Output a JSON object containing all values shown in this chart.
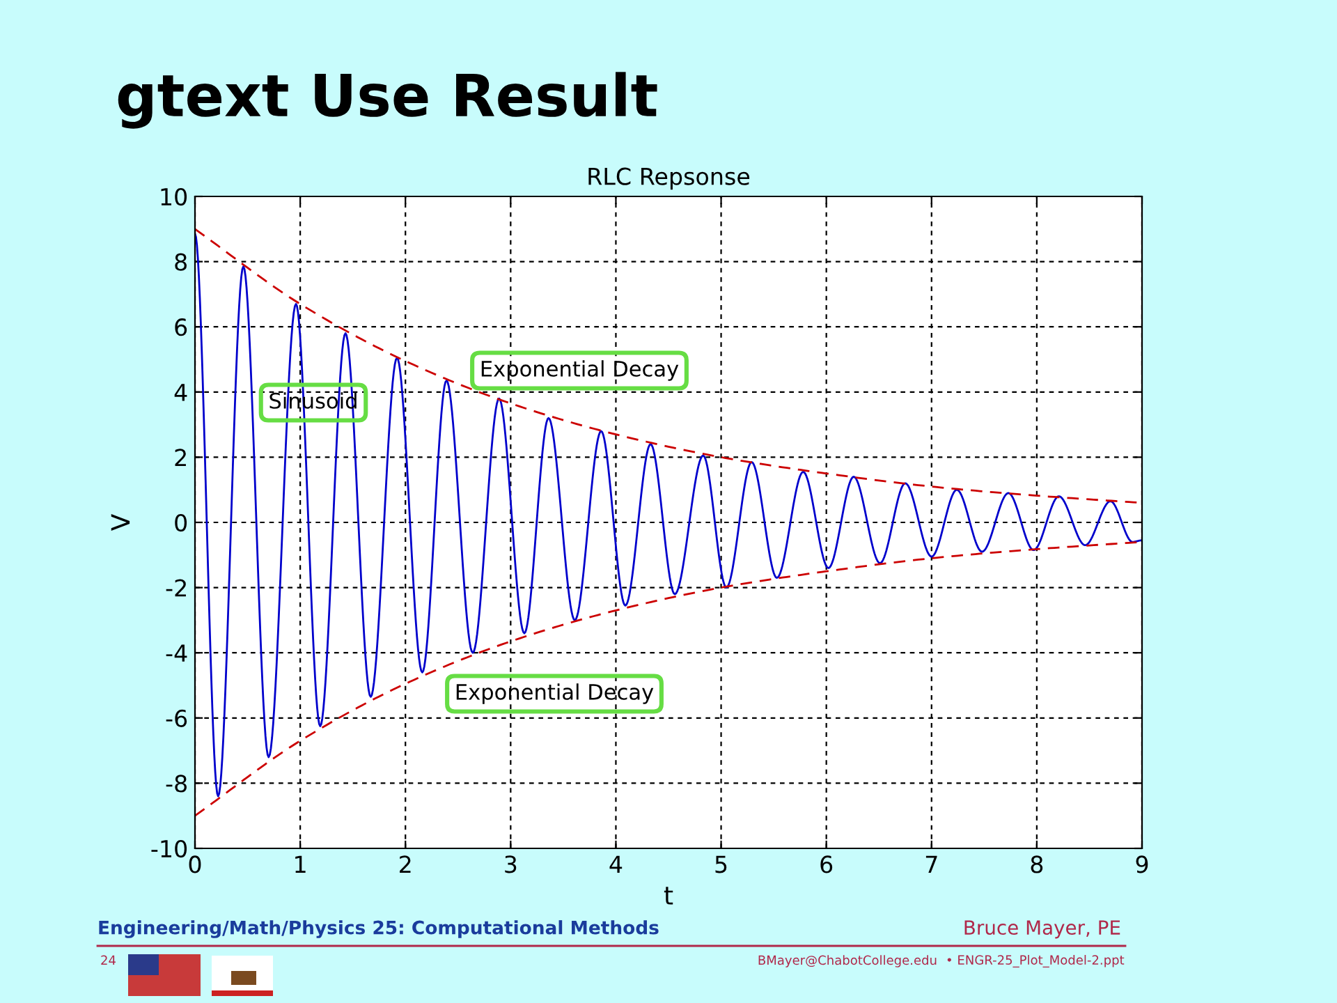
{
  "chart_data": {
    "type": "line",
    "title": "RLC Repsonse",
    "xlabel": "t",
    "ylabel": "V",
    "xlim": [
      0,
      9
    ],
    "xticks": [
      0,
      1,
      2,
      3,
      4,
      5,
      6,
      7,
      8,
      9
    ],
    "ylim": [
      -10,
      10
    ],
    "yticks": [
      -10,
      -8,
      -6,
      -4,
      -2,
      0,
      2,
      4,
      6,
      8,
      10
    ],
    "grid": true,
    "series": [
      {
        "color": "#0000cc",
        "line_style": "solid",
        "x": [
          0,
          0.22,
          0.46,
          0.7,
          0.96,
          1.19,
          1.43,
          1.67,
          1.92,
          2.16,
          2.39,
          2.64,
          2.89,
          3.13,
          3.36,
          3.61,
          3.86,
          4.09,
          4.33,
          4.56,
          4.83,
          5.05,
          5.29,
          5.53,
          5.78,
          6.02,
          6.26,
          6.51,
          6.75,
          7.0,
          7.24,
          7.48,
          7.73,
          7.97,
          8.21,
          8.46,
          8.7,
          8.91,
          9
        ],
        "values": [
          8.85,
          -8.4,
          7.85,
          -7.2,
          6.7,
          -6.25,
          5.8,
          -5.35,
          5.05,
          -4.6,
          4.35,
          -4.0,
          3.8,
          -3.4,
          3.2,
          -3.0,
          2.8,
          -2.55,
          2.4,
          -2.2,
          2.05,
          -2.0,
          1.85,
          -1.7,
          1.55,
          -1.4,
          1.4,
          -1.25,
          1.2,
          -1.05,
          1.0,
          -0.9,
          0.9,
          -0.85,
          0.8,
          -0.7,
          0.65,
          -0.6,
          -0.55
        ]
      },
      {
        "color": "#cc0000",
        "line_style": "dashed",
        "x": [
          0,
          1,
          2,
          3,
          4,
          5,
          6,
          7,
          8,
          9
        ],
        "values": [
          9,
          6.7,
          4.95,
          3.65,
          2.7,
          2.0,
          1.5,
          1.1,
          0.82,
          0.6
        ]
      },
      {
        "color": "#cc0000",
        "line_style": "dashed",
        "x": [
          0,
          1,
          2,
          3,
          4,
          5,
          6,
          7,
          8,
          9
        ],
        "values": [
          -9,
          -6.7,
          -4.95,
          -3.65,
          -2.7,
          -2.0,
          -1.5,
          -1.1,
          -0.82,
          -0.6
        ]
      }
    ],
    "annotations": [
      "Sinusoid",
      "Exponential Decay",
      "Exponential Decay",
      "gtext Use Result",
      "Engineering/Math/Physics 25: Computational Methods",
      "Bruce Mayer, PE",
      "24",
      "BMayer@ChabotCollege.edu",
      "• ENGR-25_Plot_Model-2.ppt"
    ]
  }
}
